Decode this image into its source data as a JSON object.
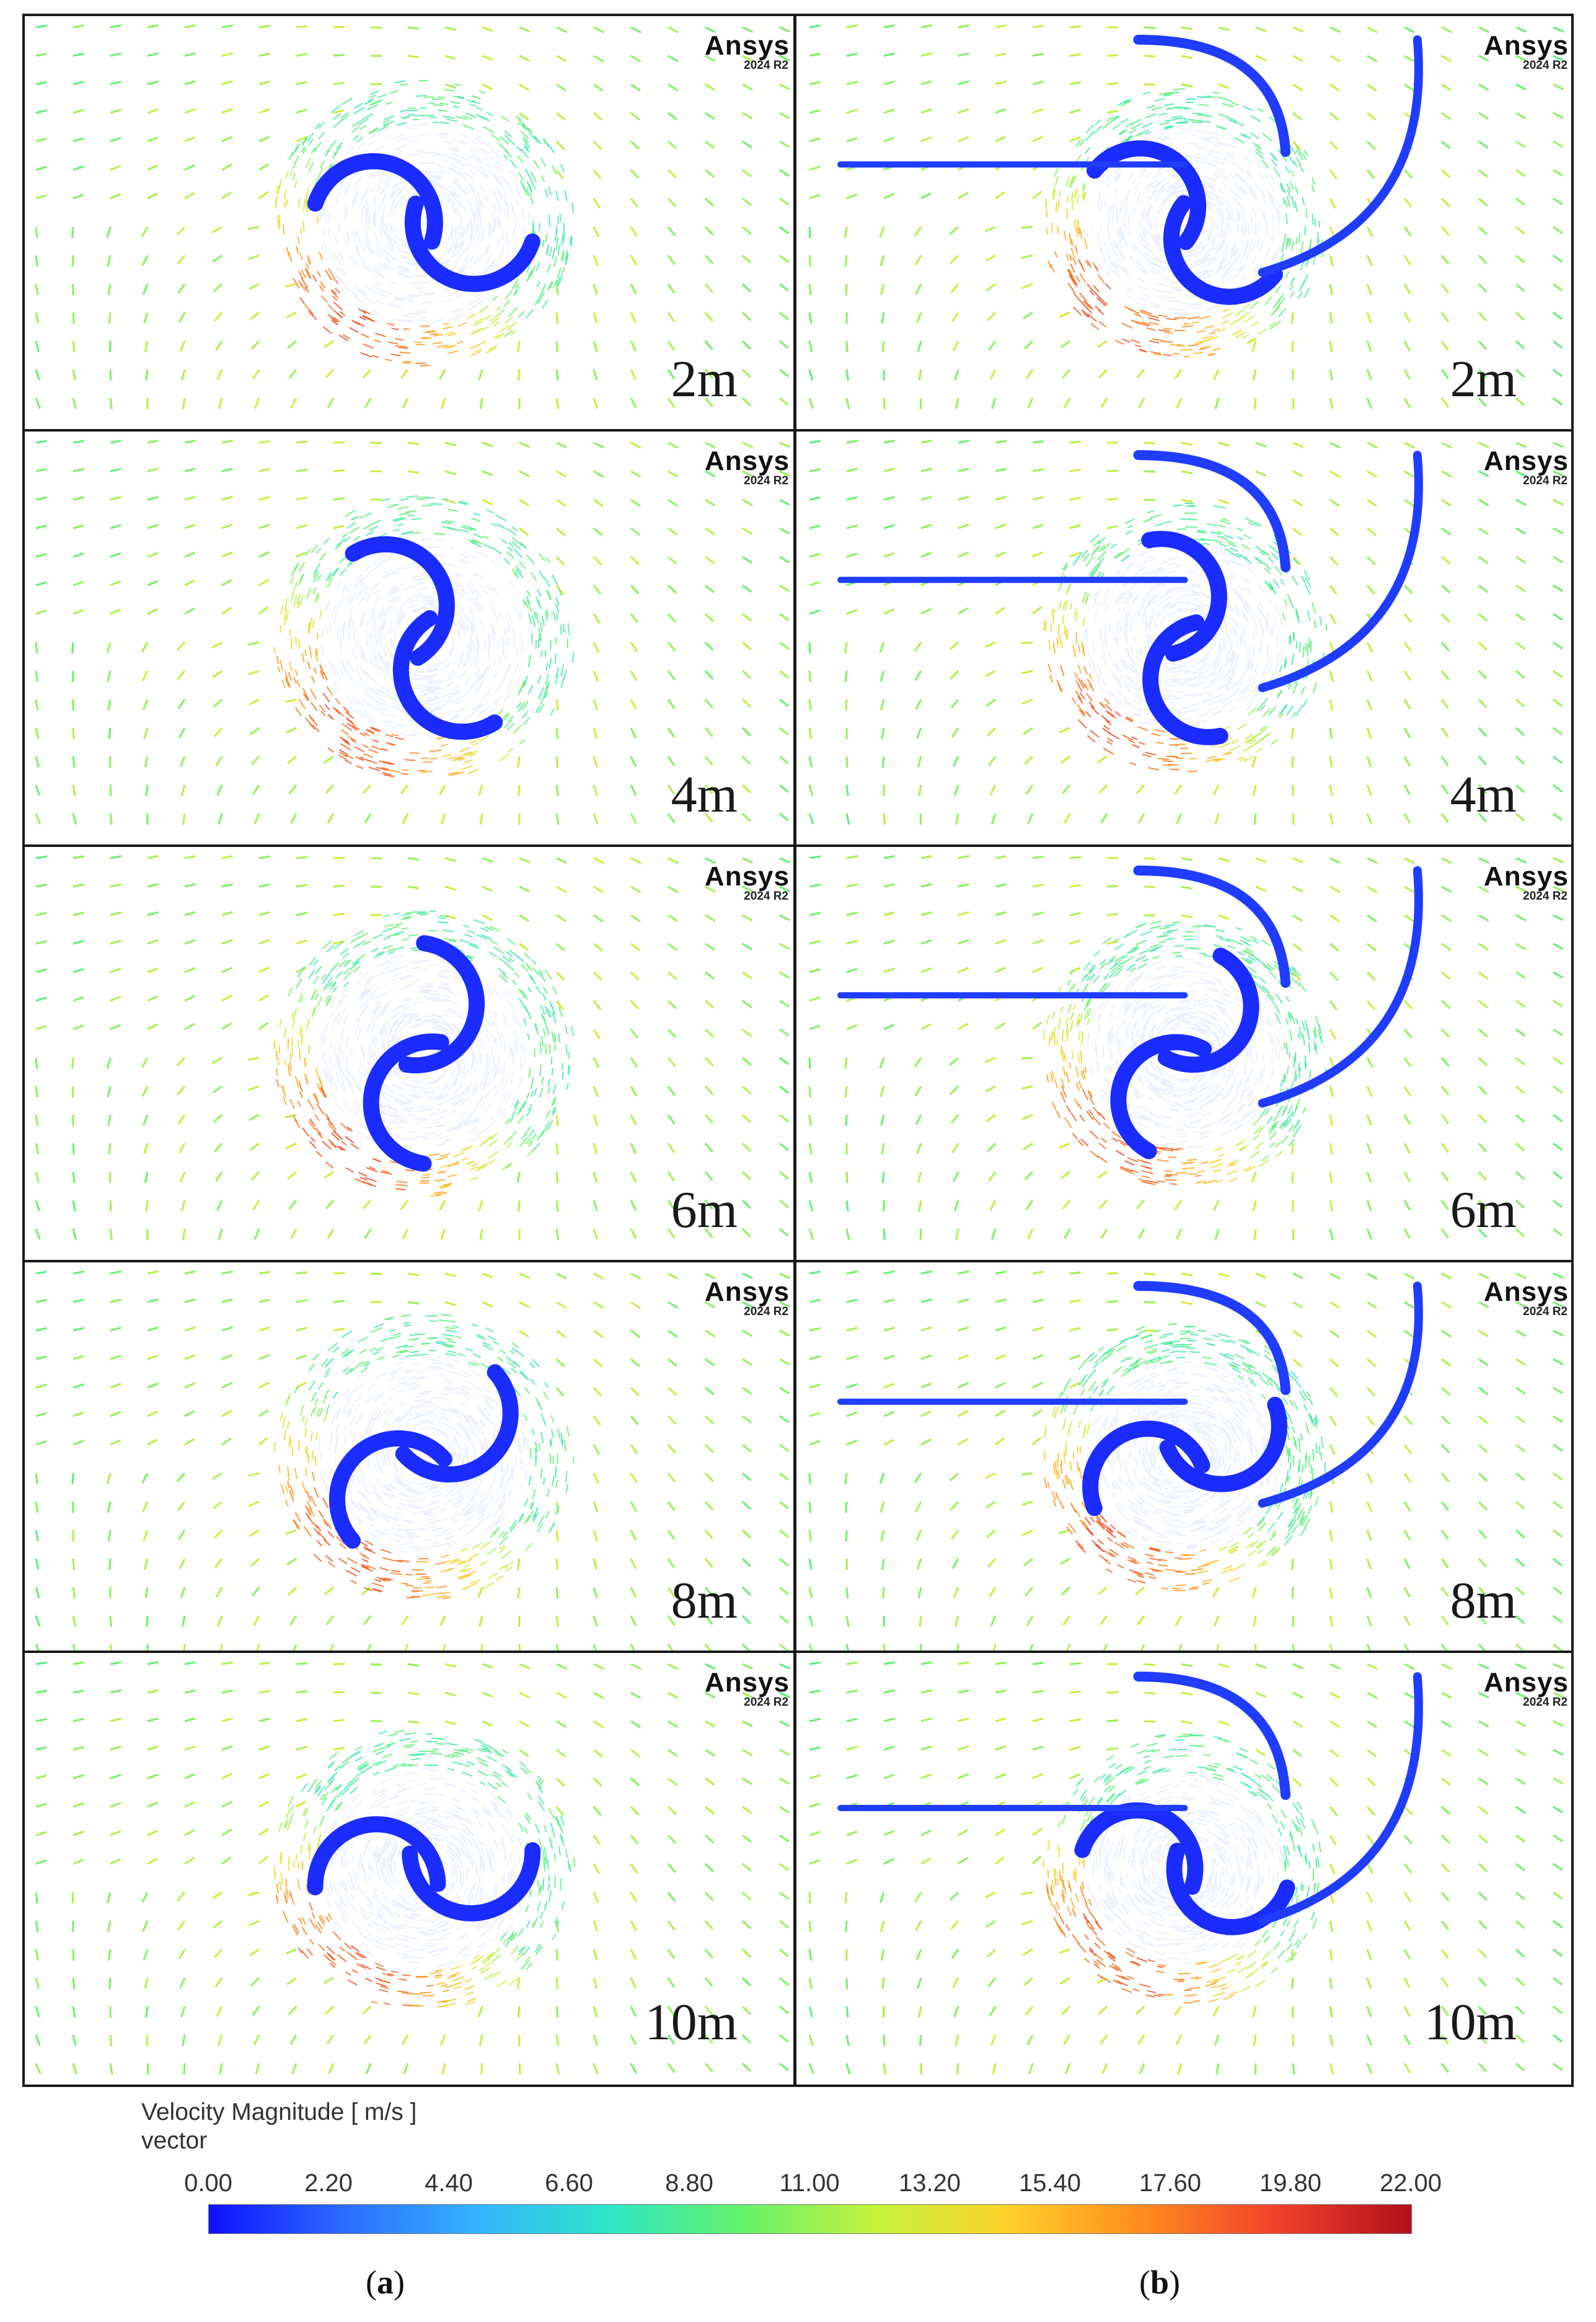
{
  "colors": {
    "colormap": [
      "#1010ff",
      "#2b6bff",
      "#34b3ff",
      "#2ee6c8",
      "#64f26a",
      "#c6f23c",
      "#ffd02a",
      "#ff8a1e",
      "#f0402a",
      "#b0101a"
    ]
  },
  "panels": [
    {
      "id": "a-2",
      "column": "a",
      "brand": "Ansys",
      "version": "2024 R2",
      "label": "2m"
    },
    {
      "id": "b-2",
      "column": "b",
      "brand": "Ansys",
      "version": "2024 R2",
      "label": "2m"
    },
    {
      "id": "a-4",
      "column": "a",
      "brand": "Ansys",
      "version": "2024 R2",
      "label": "4m"
    },
    {
      "id": "b-4",
      "column": "b",
      "brand": "Ansys",
      "version": "2024 R2",
      "label": "4m"
    },
    {
      "id": "a-6",
      "column": "a",
      "brand": "Ansys",
      "version": "2024 R2",
      "label": "6m"
    },
    {
      "id": "b-6",
      "column": "b",
      "brand": "Ansys",
      "version": "2024 R2",
      "label": "6m"
    },
    {
      "id": "a-8",
      "column": "a",
      "brand": "Ansys",
      "version": "2024 R2",
      "label": "8m"
    },
    {
      "id": "b-8",
      "column": "b",
      "brand": "Ansys",
      "version": "2024 R2",
      "label": "8m"
    },
    {
      "id": "a-10",
      "column": "a",
      "brand": "Ansys",
      "version": "2024 R2",
      "label": "10m"
    },
    {
      "id": "b-10",
      "column": "b",
      "brand": "Ansys",
      "version": "2024 R2",
      "label": "10m"
    }
  ],
  "legend": {
    "title": "Velocity Magnitude [ m/s ]",
    "subtitle": "vector",
    "ticks": [
      "0.00",
      "2.20",
      "4.40",
      "6.60",
      "8.80",
      "11.00",
      "13.20",
      "15.40",
      "17.60",
      "19.80",
      "22.00"
    ],
    "min": 0.0,
    "max": 22.0
  },
  "captions": {
    "a": "a",
    "b": "b"
  }
}
